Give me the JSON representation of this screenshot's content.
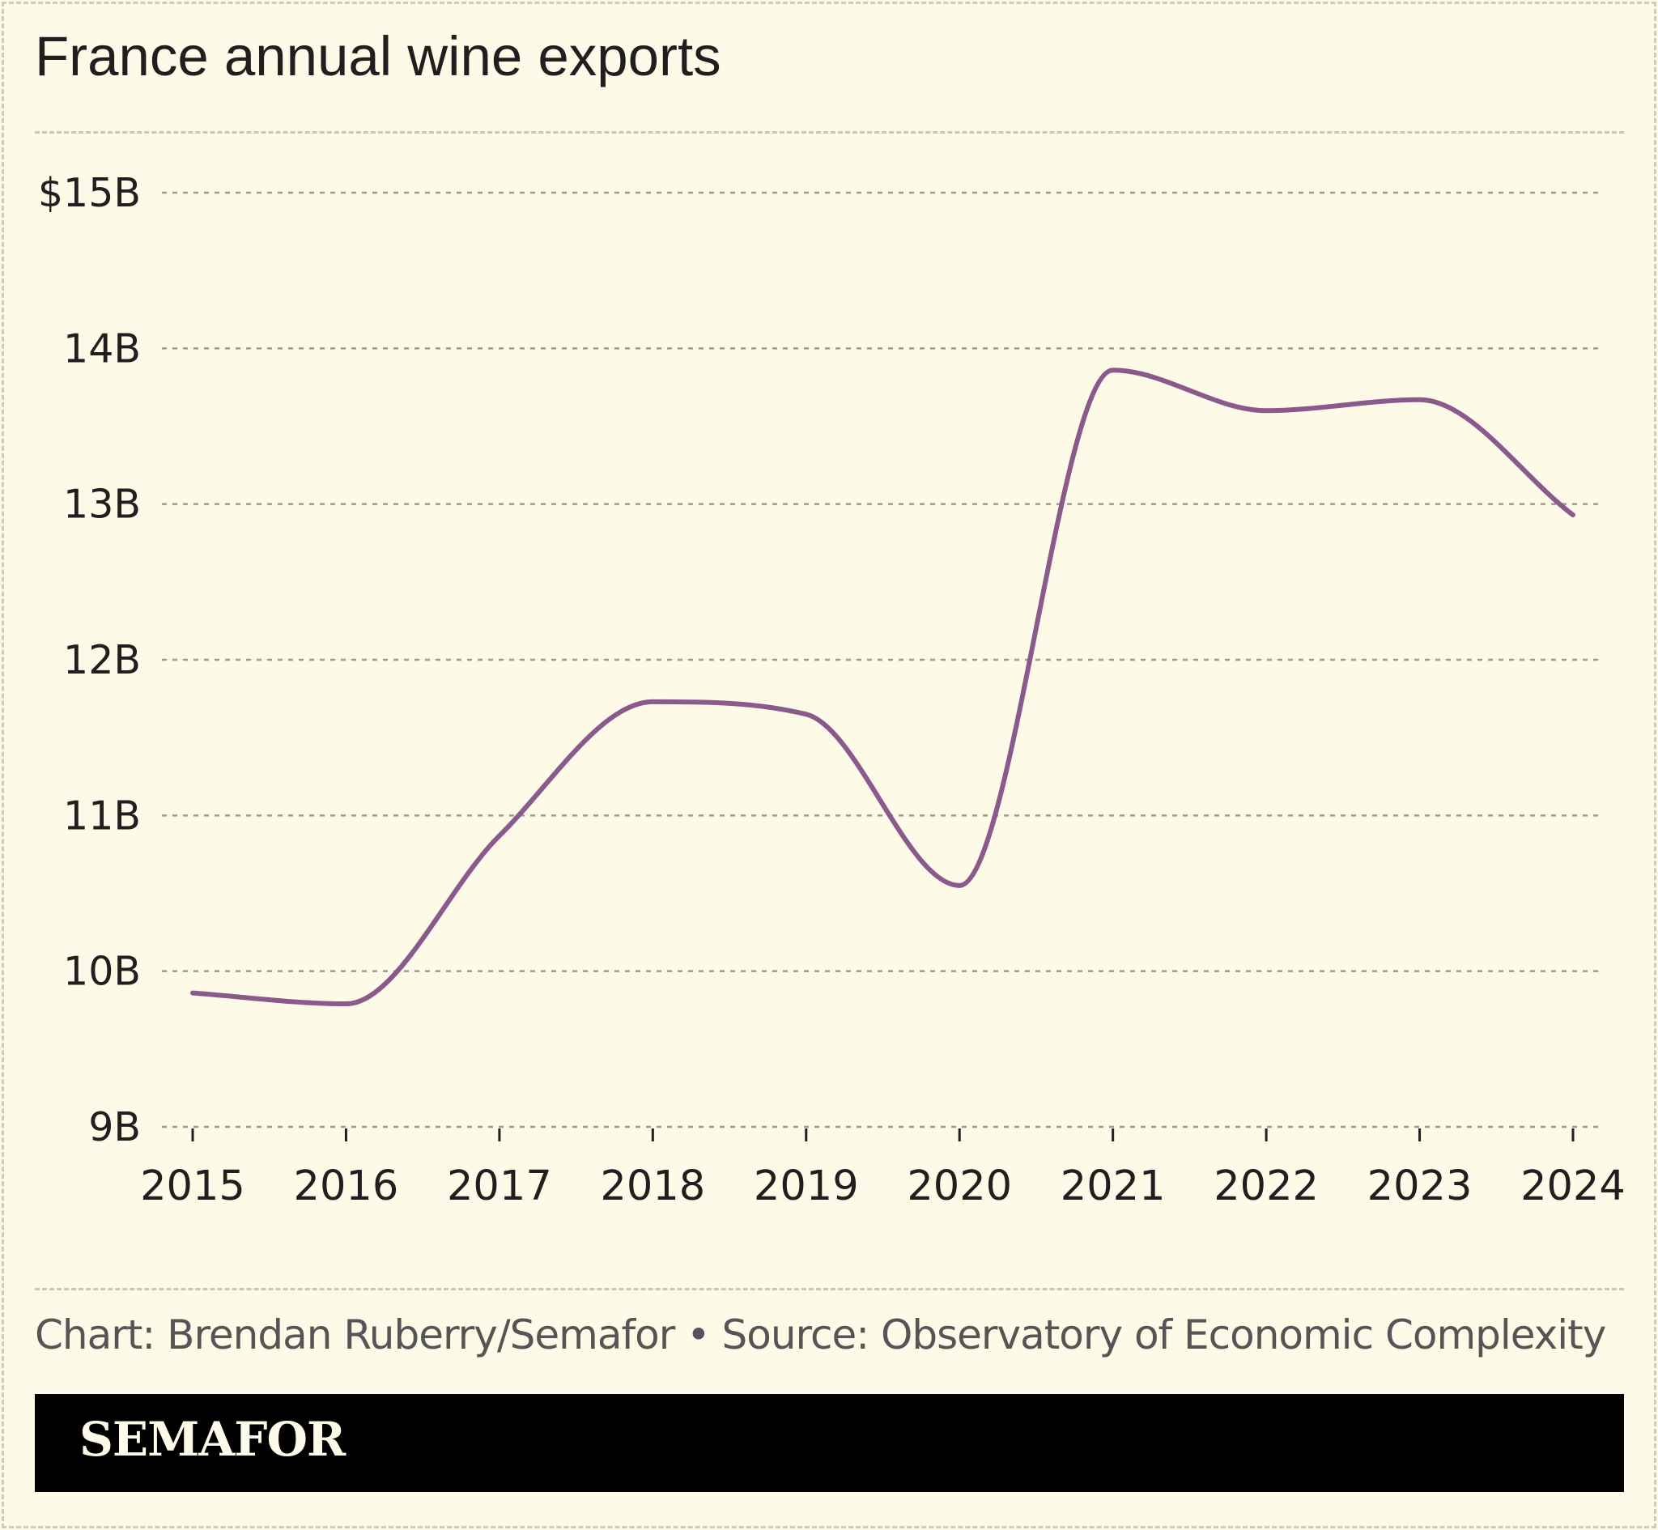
{
  "title": "France annual wine exports",
  "credit": "Chart: Brendan Ruberry/Semafor • Source: Observatory of Economic Complexity",
  "brand": "SEMAFOR",
  "colors": {
    "background": "#fdfae8",
    "line": "#8a5a8c",
    "text": "#1f1f1f",
    "gridline": "#9e9a90",
    "logo_bar": "#000000"
  },
  "chart_data": {
    "type": "line",
    "title": "France annual wine exports",
    "x": [
      2015,
      2016,
      2017,
      2018,
      2019,
      2020,
      2021,
      2022,
      2023,
      2024
    ],
    "x_tick_labels": [
      "2015",
      "2016",
      "2017",
      "2018",
      "2019",
      "2020",
      "2021",
      "2022",
      "2023",
      "2024"
    ],
    "series": [
      {
        "values": [
          9.86,
          9.79,
          10.87,
          11.73,
          11.65,
          10.55,
          13.86,
          13.6,
          13.67,
          12.93
        ]
      }
    ],
    "y_ticks": [
      9,
      10,
      11,
      12,
      13,
      14,
      15
    ],
    "y_tick_labels": [
      "9B",
      "10B",
      "11B",
      "12B",
      "13B",
      "14B",
      "$15B"
    ],
    "ylim": [
      9,
      15
    ],
    "xlabel": "",
    "ylabel": "",
    "grid": true,
    "legend": "none"
  }
}
